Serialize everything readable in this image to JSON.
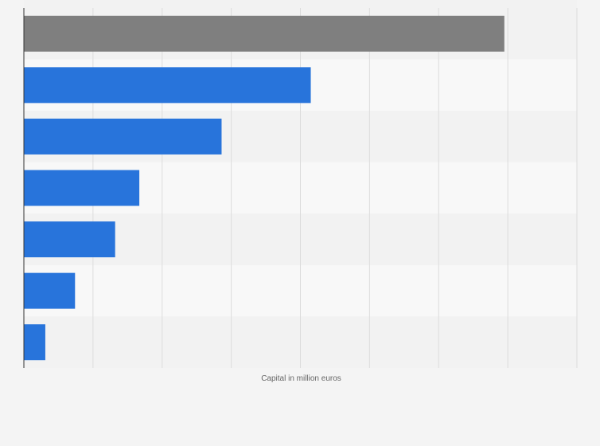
{
  "chart_data": {
    "type": "bar",
    "orientation": "horizontal",
    "categories": [
      "",
      "",
      "",
      "",
      "",
      "",
      ""
    ],
    "values": [
      6950,
      4150,
      2860,
      1670,
      1320,
      740,
      310
    ],
    "bar_colors": [
      "#7f7f7f",
      "#2874db",
      "#2874db",
      "#2874db",
      "#2874db",
      "#2874db",
      "#2874db"
    ],
    "xlim": [
      0,
      8000
    ],
    "gridline_count": 8,
    "xlabel": "Capital in million euros",
    "ylabel": "",
    "title": "",
    "grid": true,
    "legend": "none"
  },
  "colors": {
    "background": "#f4f4f4",
    "row_band_light": "#f8f8f8",
    "row_band_dark": "#f2f2f2",
    "gridline": "#dcdcdc",
    "axis": "#333333",
    "highlight_bar": "#7f7f7f",
    "bar": "#2874db"
  }
}
